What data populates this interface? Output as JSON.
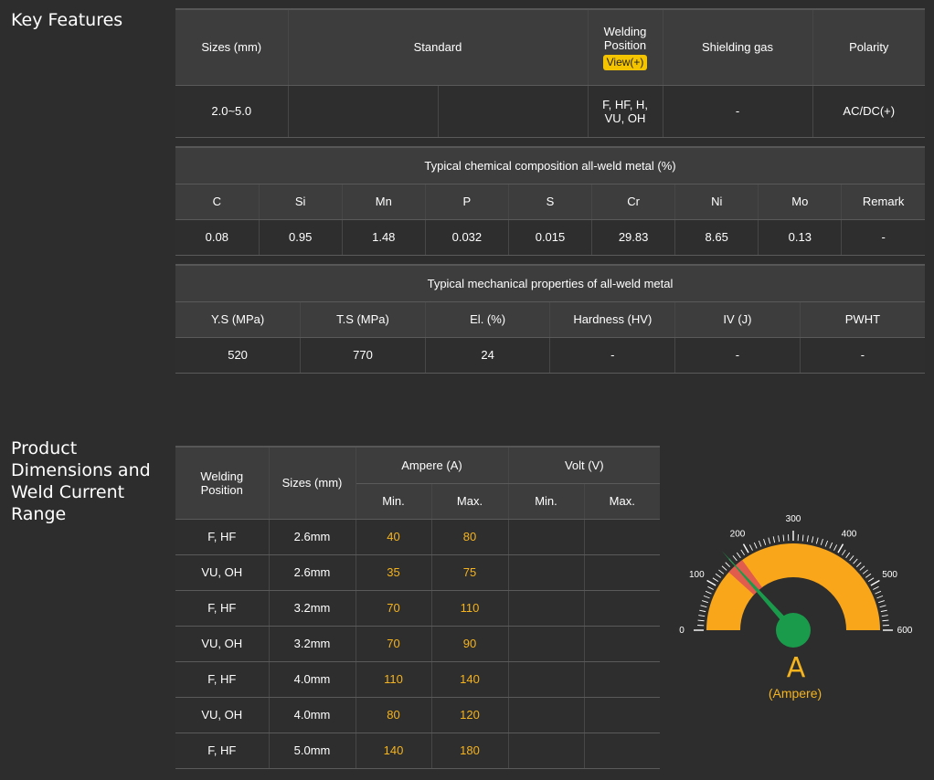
{
  "key_features": {
    "title": "Key Features",
    "header": {
      "sizes": "Sizes (mm)",
      "standard": "Standard",
      "welding_position": "Welding Position",
      "view_label": "View(+)",
      "shielding_gas": "Shielding gas",
      "polarity": "Polarity"
    },
    "row": {
      "sizes": "2.0~5.0",
      "standard_1": "",
      "standard_2": "",
      "welding_position": "F, HF, H, VU, OH",
      "shielding_gas": "-",
      "polarity": "AC/DC(+)"
    }
  },
  "chemical": {
    "title": "Typical chemical composition all-weld metal (%)",
    "columns": [
      "C",
      "Si",
      "Mn",
      "P",
      "S",
      "Cr",
      "Ni",
      "Mo",
      "Remark"
    ],
    "values": [
      "0.08",
      "0.95",
      "1.48",
      "0.032",
      "0.015",
      "29.83",
      "8.65",
      "0.13",
      "-"
    ]
  },
  "mechanical": {
    "title": "Typical mechanical properties of all-weld metal",
    "columns": [
      "Y.S (MPa)",
      "T.S (MPa)",
      "El. (%)",
      "Hardness (HV)",
      "IV (J)",
      "PWHT"
    ],
    "values": [
      "520",
      "770",
      "24",
      "-",
      "-",
      "-"
    ]
  },
  "dimensions": {
    "title": "Product Dimensions and Weld Current Range",
    "header": {
      "welding_position": "Welding Position",
      "sizes": "Sizes (mm)",
      "ampere": "Ampere (A)",
      "volt": "Volt (V)",
      "min": "Min.",
      "max": "Max."
    },
    "rows": [
      {
        "position": "F, HF",
        "size": "2.6mm",
        "amp_min": "40",
        "amp_max": "80",
        "volt_min": "",
        "volt_max": ""
      },
      {
        "position": "VU, OH",
        "size": "2.6mm",
        "amp_min": "35",
        "amp_max": "75",
        "volt_min": "",
        "volt_max": ""
      },
      {
        "position": "F, HF",
        "size": "3.2mm",
        "amp_min": "70",
        "amp_max": "110",
        "volt_min": "",
        "volt_max": ""
      },
      {
        "position": "VU, OH",
        "size": "3.2mm",
        "amp_min": "70",
        "amp_max": "90",
        "volt_min": "",
        "volt_max": ""
      },
      {
        "position": "F, HF",
        "size": "4.0mm",
        "amp_min": "110",
        "amp_max": "140",
        "volt_min": "",
        "volt_max": ""
      },
      {
        "position": "VU, OH",
        "size": "4.0mm",
        "amp_min": "80",
        "amp_max": "120",
        "volt_min": "",
        "volt_max": ""
      },
      {
        "position": "F, HF",
        "size": "5.0mm",
        "amp_min": "140",
        "amp_max": "180",
        "volt_min": "",
        "volt_max": ""
      }
    ]
  },
  "gauge": {
    "min": 0,
    "max": 600,
    "tick_labels": [
      "0",
      "100",
      "200",
      "300",
      "400",
      "500",
      "600"
    ],
    "highlight_range": [
      140,
      180
    ],
    "needle_value": 160,
    "unit_symbol": "A",
    "unit_label": "(Ampere)",
    "colors": {
      "arc": "#f9a61a",
      "highlight": "#e25c4d",
      "needle": "#1a9b4b",
      "hub": "#1a9b4b",
      "ticks": "#ffffff"
    }
  }
}
